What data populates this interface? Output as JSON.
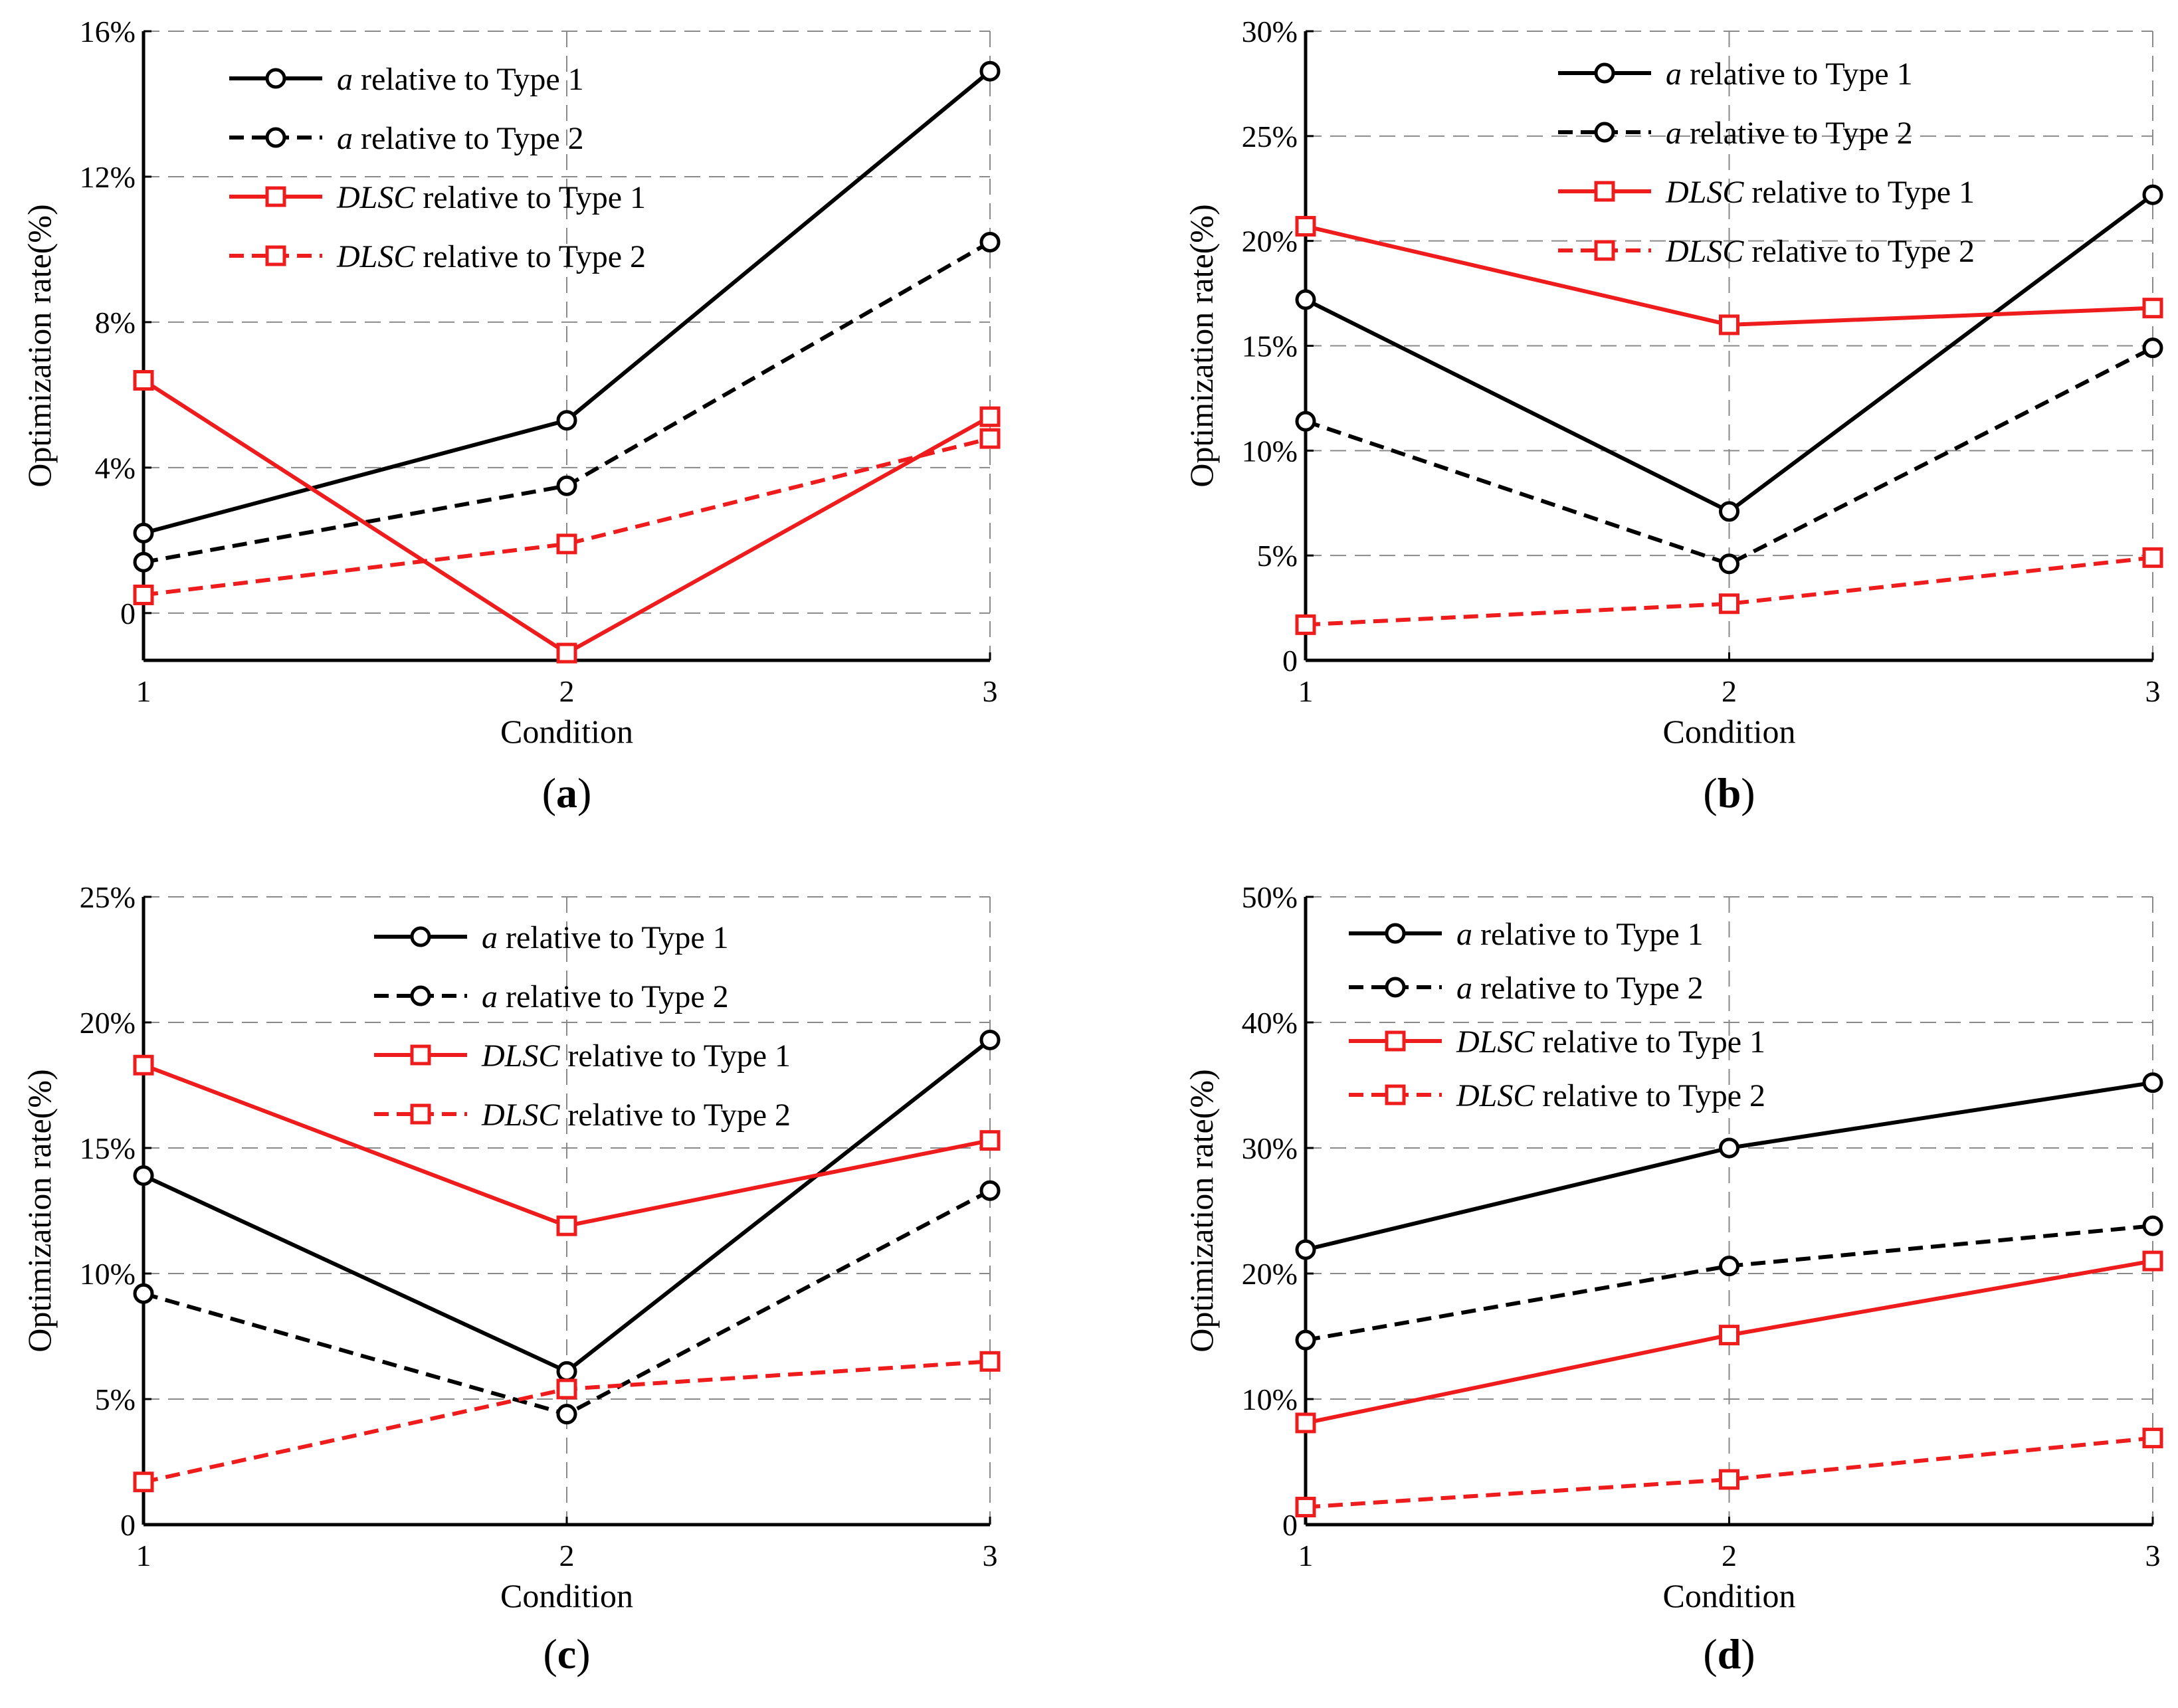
{
  "chart_data": [
    {
      "type": "line",
      "panel_label": "a",
      "x": [
        1,
        2,
        3
      ],
      "xlabel": "Condition",
      "ylabel": "Optimization  rate(%)",
      "ylim": [
        -1.3,
        16
      ],
      "yticks": [
        0,
        4,
        8,
        12,
        16
      ],
      "ytick_labels": [
        "0",
        "4%",
        "8%",
        "12%",
        "16%"
      ],
      "xticks": [
        1,
        2,
        3
      ],
      "xtick_labels": [
        "1",
        "2",
        "3"
      ],
      "grid": true,
      "legend_position": "top-left",
      "series": [
        {
          "name": "relative to Type 1",
          "symbol": "a",
          "color": "#000000",
          "dash": "solid",
          "marker": "circle",
          "values": [
            2.2,
            5.3,
            14.9
          ]
        },
        {
          "name": "relative to Type 2",
          "symbol": "a",
          "color": "#000000",
          "dash": "dashed",
          "marker": "circle",
          "values": [
            1.4,
            3.5,
            10.2
          ]
        },
        {
          "name": "relative to Type 1",
          "symbol": "DLSC",
          "color": "#ee1c1c",
          "dash": "solid",
          "marker": "square",
          "values": [
            6.4,
            -1.1,
            5.4
          ]
        },
        {
          "name": "relative to Type 2",
          "symbol": "DLSC",
          "color": "#ee1c1c",
          "dash": "dashed",
          "marker": "square",
          "values": [
            0.5,
            1.9,
            4.8
          ]
        }
      ]
    },
    {
      "type": "line",
      "panel_label": "b",
      "x": [
        1,
        2,
        3
      ],
      "xlabel": "Condition",
      "ylabel": "Optimization  rate(%)",
      "ylim": [
        0,
        30
      ],
      "yticks": [
        0,
        5,
        10,
        15,
        20,
        25,
        30
      ],
      "ytick_labels": [
        "0",
        "5%",
        "10%",
        "15%",
        "20%",
        "25%",
        "30%"
      ],
      "xticks": [
        1,
        2,
        3
      ],
      "xtick_labels": [
        "1",
        "2",
        "3"
      ],
      "grid": true,
      "legend_position": "top-center",
      "series": [
        {
          "name": "relative to Type 1",
          "symbol": "a",
          "color": "#000000",
          "dash": "solid",
          "marker": "circle",
          "values": [
            17.2,
            7.1,
            22.2
          ]
        },
        {
          "name": "relative to Type 2",
          "symbol": "a",
          "color": "#000000",
          "dash": "dashed",
          "marker": "circle",
          "values": [
            11.4,
            4.6,
            14.9
          ]
        },
        {
          "name": "relative to Type 1",
          "symbol": "DLSC",
          "color": "#ee1c1c",
          "dash": "solid",
          "marker": "square",
          "values": [
            20.7,
            16.0,
            16.8
          ]
        },
        {
          "name": "relative to Type 2",
          "symbol": "DLSC",
          "color": "#ee1c1c",
          "dash": "dashed",
          "marker": "square",
          "values": [
            1.7,
            2.7,
            4.9
          ]
        }
      ]
    },
    {
      "type": "line",
      "panel_label": "c",
      "x": [
        1,
        2,
        3
      ],
      "xlabel": "Condition",
      "ylabel": "Optimization  rate(%)",
      "ylim": [
        0,
        25
      ],
      "yticks": [
        0,
        5,
        10,
        15,
        20,
        25
      ],
      "ytick_labels": [
        "0",
        "5%",
        "10%",
        "15%",
        "20%",
        "25%"
      ],
      "xticks": [
        1,
        2,
        3
      ],
      "xtick_labels": [
        "1",
        "2",
        "3"
      ],
      "grid": true,
      "legend_position": "top-center",
      "series": [
        {
          "name": "relative to Type 1",
          "symbol": "a",
          "color": "#000000",
          "dash": "solid",
          "marker": "circle",
          "values": [
            13.9,
            6.1,
            19.3
          ]
        },
        {
          "name": "relative to Type 2",
          "symbol": "a",
          "color": "#000000",
          "dash": "dashed",
          "marker": "circle",
          "values": [
            9.2,
            4.4,
            13.3
          ]
        },
        {
          "name": "relative to Type 1",
          "symbol": "DLSC",
          "color": "#ee1c1c",
          "dash": "solid",
          "marker": "square",
          "values": [
            18.3,
            11.9,
            15.3
          ]
        },
        {
          "name": "relative to Type 2",
          "symbol": "DLSC",
          "color": "#ee1c1c",
          "dash": "dashed",
          "marker": "square",
          "values": [
            1.7,
            5.4,
            6.5
          ]
        }
      ]
    },
    {
      "type": "line",
      "panel_label": "d",
      "x": [
        1,
        2,
        3
      ],
      "xlabel": "Condition",
      "ylabel": "Optimization  rate(%)",
      "ylim": [
        0,
        50
      ],
      "yticks": [
        0,
        10,
        20,
        30,
        40,
        50
      ],
      "ytick_labels": [
        "0",
        "10%",
        "20%",
        "30%",
        "40%",
        "50%"
      ],
      "xticks": [
        1,
        2,
        3
      ],
      "xtick_labels": [
        "1",
        "2",
        "3"
      ],
      "grid": true,
      "legend_position": "top-left",
      "series": [
        {
          "name": "relative to Type 1",
          "symbol": "a",
          "color": "#000000",
          "dash": "solid",
          "marker": "circle",
          "values": [
            21.9,
            30.0,
            35.2
          ]
        },
        {
          "name": "relative to Type 2",
          "symbol": "a",
          "color": "#000000",
          "dash": "dashed",
          "marker": "circle",
          "values": [
            14.7,
            20.6,
            23.8
          ]
        },
        {
          "name": "relative to Type 1",
          "symbol": "DLSC",
          "color": "#ee1c1c",
          "dash": "solid",
          "marker": "square",
          "values": [
            8.1,
            15.1,
            21.0
          ]
        },
        {
          "name": "relative to Type 2",
          "symbol": "DLSC",
          "color": "#ee1c1c",
          "dash": "dashed",
          "marker": "square",
          "values": [
            1.4,
            3.6,
            6.9
          ]
        }
      ]
    }
  ]
}
